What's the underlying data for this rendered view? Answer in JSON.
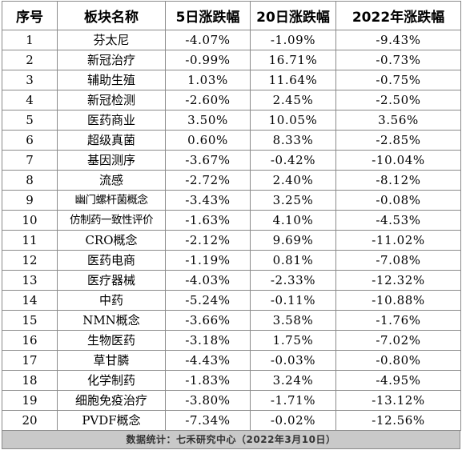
{
  "table": {
    "headers": [
      "序号",
      "板块名称",
      "5日涨跌幅",
      "20日涨跌幅",
      "2022年涨跌幅"
    ],
    "rows": [
      [
        "1",
        "芬太尼",
        "-4.07%",
        "-1.09%",
        "-9.43%"
      ],
      [
        "2",
        "新冠治疗",
        "-0.99%",
        "16.71%",
        "-0.73%"
      ],
      [
        "3",
        "辅助生殖",
        "1.03%",
        "11.64%",
        "-0.75%"
      ],
      [
        "4",
        "新冠检测",
        "-2.60%",
        "2.45%",
        "-2.50%"
      ],
      [
        "5",
        "医药商业",
        "3.50%",
        "10.05%",
        "3.56%"
      ],
      [
        "6",
        "超级真菌",
        "0.60%",
        "8.33%",
        "-2.85%"
      ],
      [
        "7",
        "基因测序",
        "-3.67%",
        "-0.42%",
        "-10.04%"
      ],
      [
        "8",
        "流感",
        "-2.72%",
        "2.40%",
        "-8.12%"
      ],
      [
        "9",
        "幽门螺杆菌概念",
        "-3.43%",
        "3.25%",
        "-0.08%"
      ],
      [
        "10",
        "仿制药一致性评价",
        "-1.63%",
        "4.10%",
        "-4.53%"
      ],
      [
        "11",
        "CRO概念",
        "-2.12%",
        "9.69%",
        "-11.02%"
      ],
      [
        "12",
        "医药电商",
        "-1.19%",
        "0.81%",
        "-7.08%"
      ],
      [
        "13",
        "医疗器械",
        "-4.03%",
        "-2.33%",
        "-12.32%"
      ],
      [
        "14",
        "中药",
        "-5.24%",
        "-0.11%",
        "-10.88%"
      ],
      [
        "15",
        "NMN概念",
        "-3.66%",
        "3.58%",
        "-1.76%"
      ],
      [
        "16",
        "生物医药",
        "-3.18%",
        "1.75%",
        "-7.02%"
      ],
      [
        "17",
        "草甘膦",
        "-4.43%",
        "-0.03%",
        "-0.80%"
      ],
      [
        "18",
        "化学制药",
        "-1.83%",
        "3.24%",
        "-4.95%"
      ],
      [
        "19",
        "细胞免疫治疗",
        "-3.80%",
        "-1.71%",
        "-13.12%"
      ],
      [
        "20",
        "PVDF概念",
        "-7.34%",
        "-0.02%",
        "-12.56%"
      ]
    ]
  },
  "footer": {
    "text": "数据统计：七禾研究中心（2022年3月10日）"
  }
}
